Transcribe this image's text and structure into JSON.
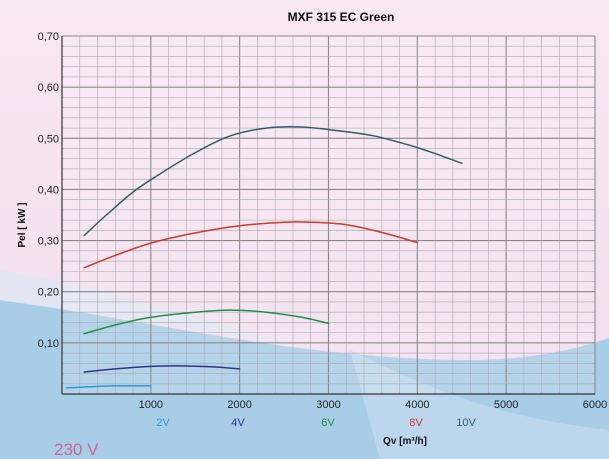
{
  "chart_data": {
    "type": "line",
    "title": "MXF 315 EC Green",
    "xlabel": "Qv [m³/h]",
    "ylabel": "Pel [ kW ]",
    "xlim": [
      0,
      6000
    ],
    "ylim": [
      0,
      0.7
    ],
    "x_ticks": [
      1000,
      2000,
      3000,
      4000,
      5000,
      6000
    ],
    "x_tick_labels": [
      "1000",
      "2000",
      "3000",
      "4000",
      "5000",
      "6000"
    ],
    "y_ticks": [
      0.1,
      0.2,
      0.3,
      0.4,
      0.5,
      0.6,
      0.7
    ],
    "y_tick_labels": [
      "0,10",
      "0,20",
      "0,30",
      "0,40",
      "0,50",
      "0,60",
      "0,70"
    ],
    "grid": true,
    "legend_placement": "bottom",
    "voltage_note": "230 V",
    "series": [
      {
        "name": "2V",
        "color": "#2a9ad8",
        "points": [
          [
            50,
            0.012
          ],
          [
            300,
            0.014
          ],
          [
            600,
            0.016
          ],
          [
            900,
            0.016
          ],
          [
            1000,
            0.016
          ]
        ]
      },
      {
        "name": "4V",
        "color": "#2b3590",
        "points": [
          [
            250,
            0.043
          ],
          [
            600,
            0.049
          ],
          [
            1000,
            0.054
          ],
          [
            1300,
            0.055
          ],
          [
            1700,
            0.053
          ],
          [
            2000,
            0.049
          ]
        ]
      },
      {
        "name": "6V",
        "color": "#1f8f4a",
        "points": [
          [
            250,
            0.118
          ],
          [
            600,
            0.135
          ],
          [
            1000,
            0.15
          ],
          [
            1500,
            0.16
          ],
          [
            1900,
            0.164
          ],
          [
            2300,
            0.16
          ],
          [
            2700,
            0.15
          ],
          [
            3000,
            0.138
          ]
        ]
      },
      {
        "name": "8V",
        "color": "#cf3a2a",
        "points": [
          [
            250,
            0.247
          ],
          [
            600,
            0.271
          ],
          [
            1000,
            0.295
          ],
          [
            1500,
            0.315
          ],
          [
            2000,
            0.329
          ],
          [
            2500,
            0.336
          ],
          [
            2800,
            0.336
          ],
          [
            3200,
            0.331
          ],
          [
            3600,
            0.316
          ],
          [
            4000,
            0.296
          ]
        ]
      },
      {
        "name": "10V",
        "color": "#2f5f63",
        "points": [
          [
            250,
            0.31
          ],
          [
            500,
            0.35
          ],
          [
            800,
            0.395
          ],
          [
            1100,
            0.43
          ],
          [
            1500,
            0.472
          ],
          [
            1900,
            0.505
          ],
          [
            2300,
            0.52
          ],
          [
            2700,
            0.522
          ],
          [
            3100,
            0.515
          ],
          [
            3500,
            0.505
          ],
          [
            3900,
            0.487
          ],
          [
            4200,
            0.47
          ],
          [
            4500,
            0.451
          ]
        ]
      }
    ]
  }
}
